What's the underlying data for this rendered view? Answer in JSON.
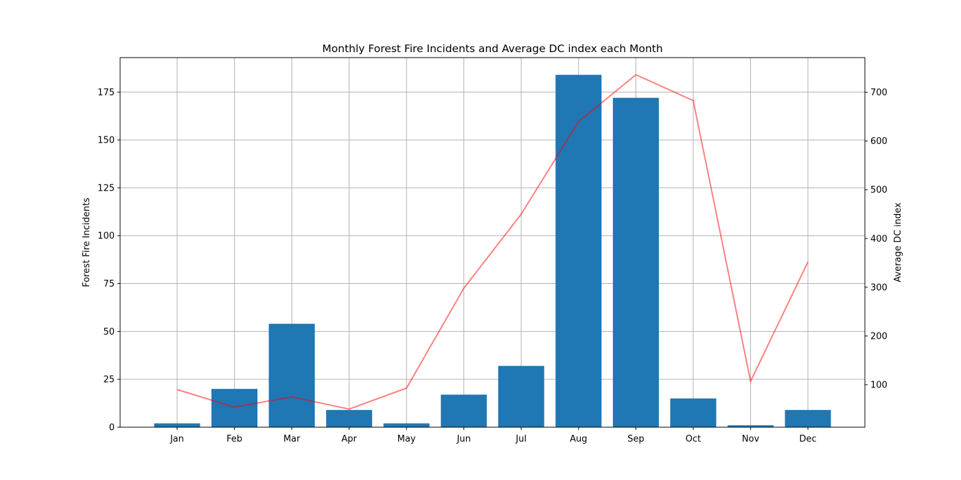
{
  "chart_data": {
    "type": "bar",
    "title": "Monthly Forest Fire Incidents and Average DC index each Month",
    "categories": [
      "Jan",
      "Feb",
      "Mar",
      "Apr",
      "May",
      "Jun",
      "Jul",
      "Aug",
      "Sep",
      "Oct",
      "Nov",
      "Dec"
    ],
    "series": [
      {
        "name": "Forest Fire Incidents",
        "type": "bar",
        "axis": "left",
        "color": "#1f77b4",
        "values": [
          2,
          20,
          54,
          9,
          2,
          17,
          32,
          184,
          172,
          15,
          1,
          9
        ]
      },
      {
        "name": "Average DC index",
        "type": "line",
        "axis": "right",
        "color": "#ff7f7f",
        "values": [
          90,
          54,
          75,
          50,
          93,
          298,
          450,
          640,
          736,
          683,
          107,
          352
        ]
      }
    ],
    "ylabel": "Forest Fire Incidents",
    "ylabel_right": "Average DC index",
    "xlabel": "",
    "ylim": [
      0,
      193
    ],
    "ylim_right": [
      12.8,
      771.2
    ],
    "yticks": [
      0,
      25,
      50,
      75,
      100,
      125,
      150,
      175
    ],
    "yticks_right": [
      100,
      200,
      300,
      400,
      500,
      600,
      700
    ],
    "grid": true
  }
}
